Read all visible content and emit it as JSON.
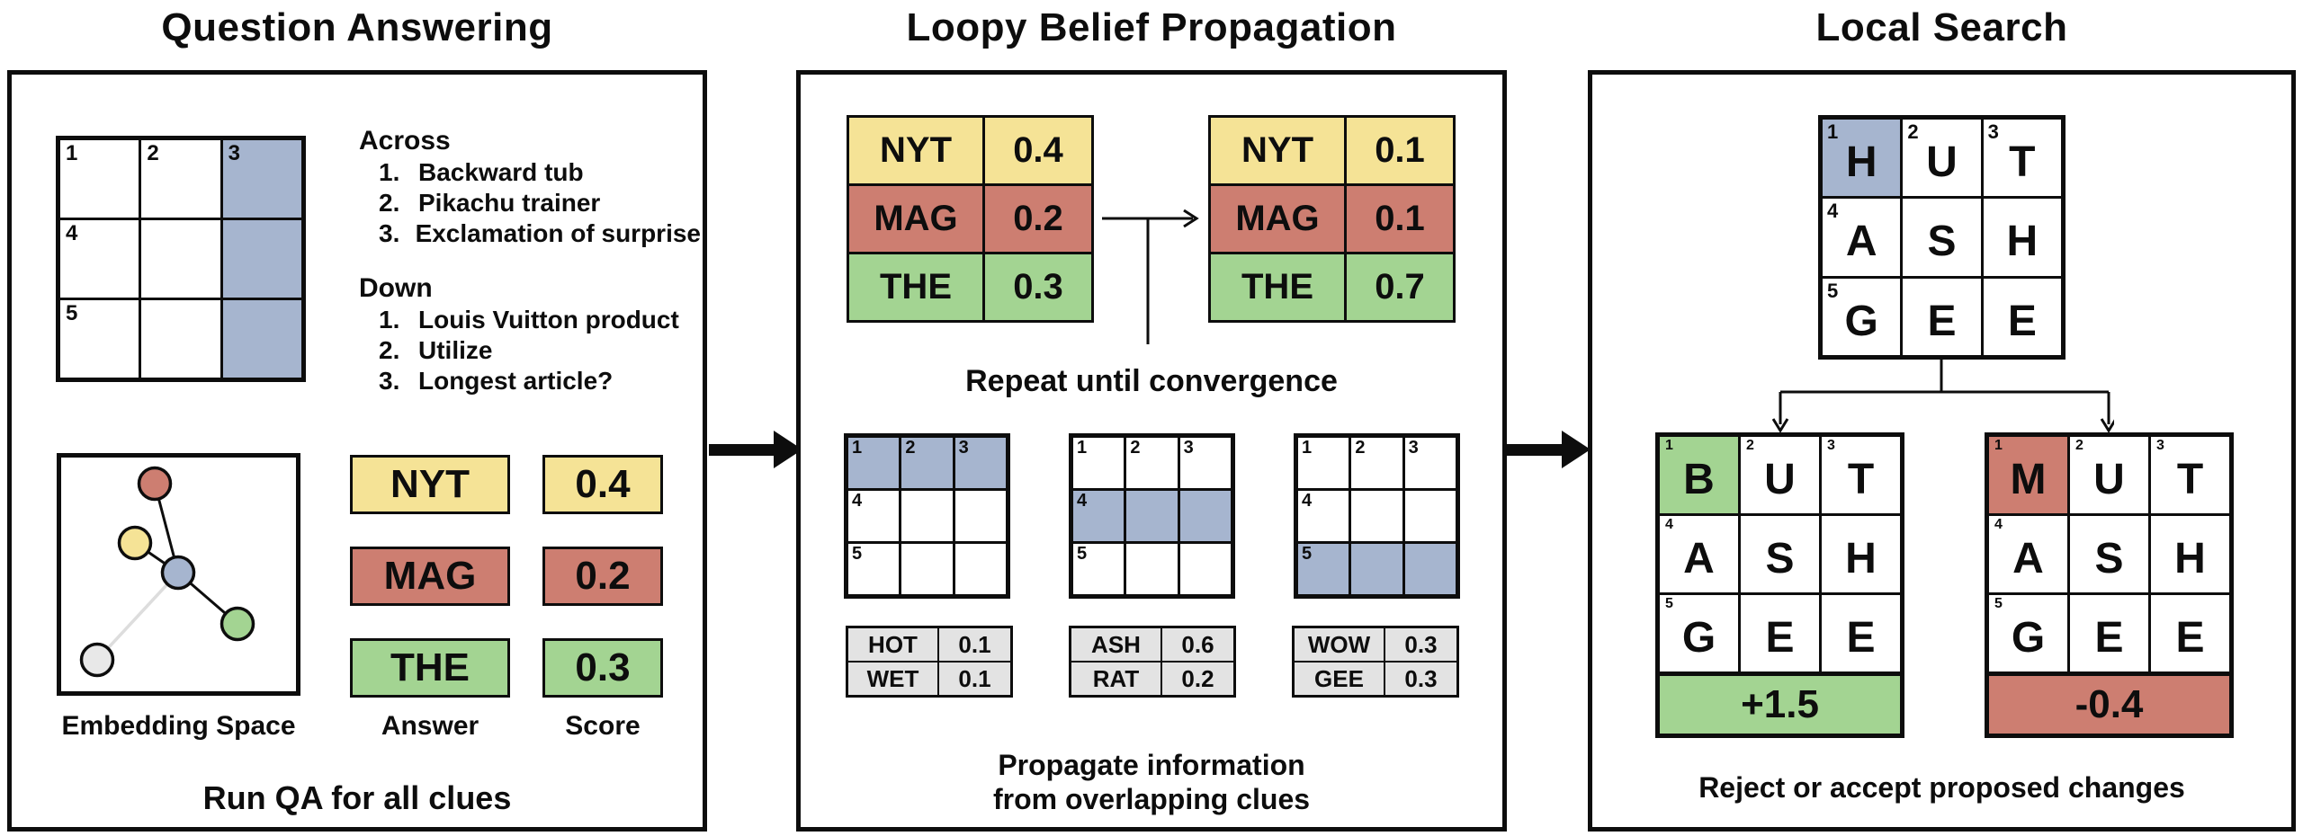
{
  "titles": {
    "qa": "Question Answering",
    "lbp": "Loopy Belief Propagation",
    "ls": "Local Search"
  },
  "colors": {
    "yellow": "#f5e396",
    "red": "#cd7e71",
    "green": "#a3d492",
    "blue": "#a6b5cf",
    "gray_cell": "#e3e3e3",
    "node_gray": "#e8e8e8"
  },
  "qa": {
    "grid": {
      "numbers": [
        [
          "1",
          "2",
          "3"
        ],
        [
          "4",
          "",
          ""
        ],
        [
          "5",
          "",
          ""
        ]
      ],
      "shaded_cells": [
        [
          0,
          2
        ],
        [
          1,
          2
        ],
        [
          2,
          2
        ]
      ]
    },
    "clues": {
      "across_header": "Across",
      "across": [
        {
          "num": "1.",
          "text": "Backward tub"
        },
        {
          "num": "2.",
          "text": "Pikachu trainer"
        },
        {
          "num": "3.",
          "text": "Exclamation of surprise"
        }
      ],
      "down_header": "Down",
      "down": [
        {
          "num": "1.",
          "text": "Louis Vuitton product"
        },
        {
          "num": "2.",
          "text": "Utilize"
        },
        {
          "num": "3.",
          "text": "Longest article?"
        }
      ]
    },
    "embedding_label": "Embedding Space",
    "answers": [
      {
        "word": "NYT",
        "score": "0.4",
        "color_key": "yellow"
      },
      {
        "word": "MAG",
        "score": "0.2",
        "color_key": "red"
      },
      {
        "word": "THE",
        "score": "0.3",
        "color_key": "green"
      }
    ],
    "answer_col_label": "Answer",
    "score_col_label": "Score",
    "caption": "Run QA for all clues"
  },
  "lbp": {
    "before": [
      {
        "word": "NYT",
        "score": "0.4",
        "color_key": "yellow"
      },
      {
        "word": "MAG",
        "score": "0.2",
        "color_key": "red"
      },
      {
        "word": "THE",
        "score": "0.3",
        "color_key": "green"
      }
    ],
    "after": [
      {
        "word": "NYT",
        "score": "0.1",
        "color_key": "yellow"
      },
      {
        "word": "MAG",
        "score": "0.1",
        "color_key": "red"
      },
      {
        "word": "THE",
        "score": "0.7",
        "color_key": "green"
      }
    ],
    "repeat_label": "Repeat until convergence",
    "grids": [
      {
        "numbers": [
          [
            "1",
            "2",
            "3"
          ],
          [
            "4",
            "",
            ""
          ],
          [
            "5",
            "",
            ""
          ]
        ],
        "shaded_cells": [
          [
            0,
            0
          ],
          [
            0,
            1
          ],
          [
            0,
            2
          ]
        ]
      },
      {
        "numbers": [
          [
            "1",
            "2",
            "3"
          ],
          [
            "4",
            "",
            ""
          ],
          [
            "5",
            "",
            ""
          ]
        ],
        "shaded_cells": [
          [
            1,
            0
          ],
          [
            1,
            1
          ],
          [
            1,
            2
          ]
        ]
      },
      {
        "numbers": [
          [
            "1",
            "2",
            "3"
          ],
          [
            "4",
            "",
            ""
          ],
          [
            "5",
            "",
            ""
          ]
        ],
        "shaded_cells": [
          [
            2,
            0
          ],
          [
            2,
            1
          ],
          [
            2,
            2
          ]
        ]
      }
    ],
    "candidates": [
      {
        "rows": [
          {
            "word": "HOT",
            "score": "0.1"
          },
          {
            "word": "WET",
            "score": "0.1"
          }
        ]
      },
      {
        "rows": [
          {
            "word": "ASH",
            "score": "0.6"
          },
          {
            "word": "RAT",
            "score": "0.2"
          }
        ]
      },
      {
        "rows": [
          {
            "word": "WOW",
            "score": "0.3"
          },
          {
            "word": "GEE",
            "score": "0.3"
          }
        ]
      }
    ],
    "caption_line1": "Propagate information",
    "caption_line2": "from overlapping clues"
  },
  "ls": {
    "parent": {
      "letters": [
        [
          "H",
          "U",
          "T"
        ],
        [
          "A",
          "S",
          "H"
        ],
        [
          "G",
          "E",
          "E"
        ]
      ],
      "numbers": [
        [
          "1",
          "2",
          "3"
        ],
        [
          "4",
          "",
          ""
        ],
        [
          "5",
          "",
          ""
        ]
      ],
      "highlight": {
        "r": 0,
        "c": 0,
        "color_key": "blue"
      }
    },
    "children": [
      {
        "letters": [
          [
            "B",
            "U",
            "T"
          ],
          [
            "A",
            "S",
            "H"
          ],
          [
            "G",
            "E",
            "E"
          ]
        ],
        "numbers": [
          [
            "1",
            "2",
            "3"
          ],
          [
            "4",
            "",
            ""
          ],
          [
            "5",
            "",
            ""
          ]
        ],
        "highlight": {
          "r": 0,
          "c": 0,
          "color_key": "green"
        },
        "delta": "+1.5",
        "delta_color_key": "green"
      },
      {
        "letters": [
          [
            "M",
            "U",
            "T"
          ],
          [
            "A",
            "S",
            "H"
          ],
          [
            "G",
            "E",
            "E"
          ]
        ],
        "numbers": [
          [
            "1",
            "2",
            "3"
          ],
          [
            "4",
            "",
            ""
          ],
          [
            "5",
            "",
            ""
          ]
        ],
        "highlight": {
          "r": 0,
          "c": 0,
          "color_key": "red"
        },
        "delta": "-0.4",
        "delta_color_key": "red"
      }
    ],
    "caption": "Reject or accept proposed changes"
  }
}
